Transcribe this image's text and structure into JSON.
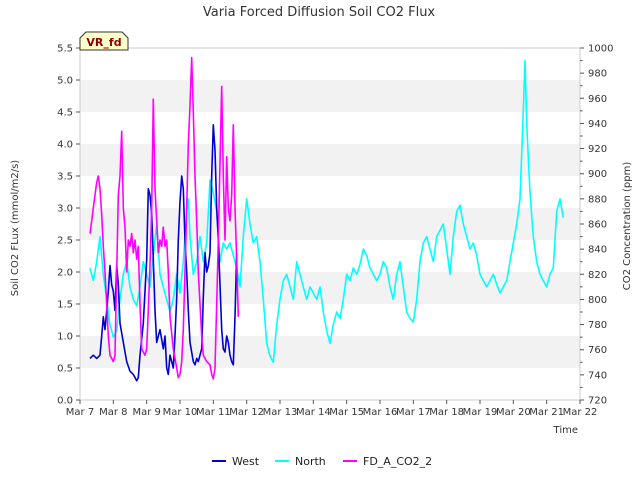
{
  "chart_data": {
    "type": "line",
    "title": "Varia Forced Diffusion Soil CO2 Flux",
    "xlabel": "Time",
    "ylabel": "Soil CO2 FLux (mmol/m2/s)",
    "ylabel_right": "CO2 Concentration (ppm)",
    "badge": "VR_fd",
    "x_ticks": [
      "Mar 7",
      "Mar 8",
      "Mar 9",
      "Mar 10",
      "Mar 11",
      "Mar 12",
      "Mar 13",
      "Mar 14",
      "Mar 15",
      "Mar 16",
      "Mar 17",
      "Mar 18",
      "Mar 19",
      "Mar 20",
      "Mar 21",
      "Mar 22"
    ],
    "xlim": [
      0,
      15
    ],
    "ylim": [
      0.0,
      5.5
    ],
    "y_ticks": [
      "0.0",
      "0.5",
      "1.0",
      "1.5",
      "2.0",
      "2.5",
      "3.0",
      "3.5",
      "4.0",
      "4.5",
      "5.0",
      "5.5"
    ],
    "ylim_right": [
      720,
      1000
    ],
    "y_ticks_right": [
      "720",
      "740",
      "760",
      "780",
      "800",
      "820",
      "840",
      "860",
      "880",
      "900",
      "920",
      "940",
      "960",
      "980",
      "1000"
    ],
    "grid": "horizontal bands",
    "legend_position": "bottom-center",
    "series": [
      {
        "name": "West",
        "axis": "left",
        "color": "#0000cc",
        "points": [
          [
            0.3,
            0.65
          ],
          [
            0.4,
            0.7
          ],
          [
            0.5,
            0.65
          ],
          [
            0.6,
            0.7
          ],
          [
            0.65,
            1.0
          ],
          [
            0.7,
            1.3
          ],
          [
            0.75,
            1.1
          ],
          [
            0.8,
            1.4
          ],
          [
            0.85,
            1.7
          ],
          [
            0.9,
            2.1
          ],
          [
            0.95,
            1.8
          ],
          [
            1.0,
            1.7
          ],
          [
            1.05,
            1.4
          ],
          [
            1.1,
            2.1
          ],
          [
            1.15,
            1.8
          ],
          [
            1.2,
            1.2
          ],
          [
            1.3,
            0.9
          ],
          [
            1.4,
            0.6
          ],
          [
            1.5,
            0.45
          ],
          [
            1.6,
            0.4
          ],
          [
            1.7,
            0.3
          ],
          [
            1.75,
            0.35
          ],
          [
            1.8,
            0.7
          ],
          [
            1.9,
            1.2
          ],
          [
            2.0,
            2.2
          ],
          [
            2.05,
            3.3
          ],
          [
            2.1,
            3.2
          ],
          [
            2.15,
            2.9
          ],
          [
            2.2,
            2.2
          ],
          [
            2.25,
            1.4
          ],
          [
            2.3,
            0.9
          ],
          [
            2.4,
            1.1
          ],
          [
            2.5,
            0.8
          ],
          [
            2.55,
            1.0
          ],
          [
            2.6,
            0.5
          ],
          [
            2.65,
            0.4
          ],
          [
            2.7,
            0.7
          ],
          [
            2.8,
            0.5
          ],
          [
            2.85,
            1.0
          ],
          [
            2.9,
            1.6
          ],
          [
            2.95,
            2.5
          ],
          [
            3.0,
            3.1
          ],
          [
            3.05,
            3.5
          ],
          [
            3.1,
            3.3
          ],
          [
            3.15,
            2.5
          ],
          [
            3.2,
            2.0
          ],
          [
            3.25,
            1.4
          ],
          [
            3.3,
            0.9
          ],
          [
            3.4,
            0.6
          ],
          [
            3.45,
            0.55
          ],
          [
            3.5,
            0.65
          ],
          [
            3.55,
            0.6
          ],
          [
            3.6,
            0.7
          ],
          [
            3.65,
            0.8
          ],
          [
            3.7,
            1.6
          ],
          [
            3.75,
            2.3
          ],
          [
            3.8,
            2.0
          ],
          [
            3.85,
            2.1
          ],
          [
            3.9,
            2.3
          ],
          [
            3.95,
            3.5
          ],
          [
            4.0,
            4.3
          ],
          [
            4.05,
            3.9
          ],
          [
            4.1,
            3.0
          ],
          [
            4.15,
            2.5
          ],
          [
            4.2,
            1.8
          ],
          [
            4.25,
            1.1
          ],
          [
            4.3,
            0.8
          ],
          [
            4.35,
            0.75
          ],
          [
            4.4,
            1.0
          ],
          [
            4.45,
            0.9
          ],
          [
            4.5,
            0.7
          ],
          [
            4.55,
            0.6
          ],
          [
            4.6,
            0.55
          ],
          [
            4.65,
            1.3
          ],
          [
            4.7,
            2.3
          ]
        ]
      },
      {
        "name": "North",
        "axis": "right",
        "color": "#00ffff",
        "points": [
          [
            0.3,
            825
          ],
          [
            0.4,
            815
          ],
          [
            0.5,
            830
          ],
          [
            0.6,
            850
          ],
          [
            0.7,
            820
          ],
          [
            0.8,
            800
          ],
          [
            0.9,
            780
          ],
          [
            1.0,
            770
          ],
          [
            1.1,
            775
          ],
          [
            1.2,
            800
          ],
          [
            1.3,
            820
          ],
          [
            1.4,
            830
          ],
          [
            1.5,
            810
          ],
          [
            1.6,
            800
          ],
          [
            1.7,
            795
          ],
          [
            1.8,
            810
          ],
          [
            1.9,
            830
          ],
          [
            2.0,
            820
          ],
          [
            2.1,
            810
          ],
          [
            2.2,
            835
          ],
          [
            2.3,
            860
          ],
          [
            2.4,
            820
          ],
          [
            2.5,
            810
          ],
          [
            2.6,
            800
          ],
          [
            2.7,
            790
          ],
          [
            2.8,
            800
          ],
          [
            2.9,
            820
          ],
          [
            3.0,
            805
          ],
          [
            3.1,
            830
          ],
          [
            3.2,
            870
          ],
          [
            3.25,
            880
          ],
          [
            3.3,
            850
          ],
          [
            3.4,
            820
          ],
          [
            3.5,
            830
          ],
          [
            3.6,
            850
          ],
          [
            3.7,
            830
          ],
          [
            3.8,
            845
          ],
          [
            3.9,
            895
          ],
          [
            4.0,
            885
          ],
          [
            4.1,
            870
          ],
          [
            4.2,
            830
          ],
          [
            4.3,
            845
          ],
          [
            4.4,
            840
          ],
          [
            4.5,
            845
          ],
          [
            4.6,
            835
          ],
          [
            4.7,
            825
          ],
          [
            4.8,
            810
          ],
          [
            4.9,
            850
          ],
          [
            5.0,
            880
          ],
          [
            5.1,
            860
          ],
          [
            5.2,
            845
          ],
          [
            5.3,
            850
          ],
          [
            5.4,
            830
          ],
          [
            5.5,
            800
          ],
          [
            5.6,
            765
          ],
          [
            5.7,
            755
          ],
          [
            5.8,
            750
          ],
          [
            5.9,
            780
          ],
          [
            6.0,
            800
          ],
          [
            6.1,
            815
          ],
          [
            6.2,
            820
          ],
          [
            6.3,
            810
          ],
          [
            6.4,
            800
          ],
          [
            6.5,
            830
          ],
          [
            6.6,
            820
          ],
          [
            6.7,
            810
          ],
          [
            6.8,
            800
          ],
          [
            6.9,
            810
          ],
          [
            7.0,
            805
          ],
          [
            7.1,
            800
          ],
          [
            7.2,
            810
          ],
          [
            7.3,
            790
          ],
          [
            7.4,
            775
          ],
          [
            7.5,
            765
          ],
          [
            7.6,
            780
          ],
          [
            7.7,
            790
          ],
          [
            7.8,
            785
          ],
          [
            7.9,
            800
          ],
          [
            8.0,
            820
          ],
          [
            8.1,
            815
          ],
          [
            8.2,
            825
          ],
          [
            8.3,
            820
          ],
          [
            8.4,
            828
          ],
          [
            8.5,
            840
          ],
          [
            8.6,
            835
          ],
          [
            8.7,
            825
          ],
          [
            8.8,
            820
          ],
          [
            8.9,
            815
          ],
          [
            9.0,
            820
          ],
          [
            9.1,
            830
          ],
          [
            9.2,
            825
          ],
          [
            9.3,
            810
          ],
          [
            9.4,
            800
          ],
          [
            9.5,
            820
          ],
          [
            9.6,
            830
          ],
          [
            9.7,
            810
          ],
          [
            9.8,
            790
          ],
          [
            9.9,
            785
          ],
          [
            10.0,
            782
          ],
          [
            10.1,
            800
          ],
          [
            10.2,
            830
          ],
          [
            10.3,
            845
          ],
          [
            10.4,
            850
          ],
          [
            10.5,
            840
          ],
          [
            10.6,
            830
          ],
          [
            10.7,
            850
          ],
          [
            10.8,
            855
          ],
          [
            10.9,
            860
          ],
          [
            11.0,
            840
          ],
          [
            11.1,
            820
          ],
          [
            11.2,
            850
          ],
          [
            11.3,
            870
          ],
          [
            11.4,
            875
          ],
          [
            11.5,
            860
          ],
          [
            11.6,
            850
          ],
          [
            11.7,
            840
          ],
          [
            11.8,
            845
          ],
          [
            11.9,
            835
          ],
          [
            12.0,
            820
          ],
          [
            12.1,
            815
          ],
          [
            12.2,
            810
          ],
          [
            12.3,
            815
          ],
          [
            12.4,
            820
          ],
          [
            12.5,
            812
          ],
          [
            12.6,
            805
          ],
          [
            12.7,
            810
          ],
          [
            12.8,
            815
          ],
          [
            12.9,
            830
          ],
          [
            13.0,
            845
          ],
          [
            13.1,
            860
          ],
          [
            13.2,
            880
          ],
          [
            13.3,
            950
          ],
          [
            13.35,
            990
          ],
          [
            13.4,
            940
          ],
          [
            13.5,
            885
          ],
          [
            13.6,
            850
          ],
          [
            13.7,
            830
          ],
          [
            13.8,
            820
          ],
          [
            13.9,
            815
          ],
          [
            14.0,
            810
          ],
          [
            14.1,
            820
          ],
          [
            14.2,
            825
          ],
          [
            14.3,
            870
          ],
          [
            14.4,
            880
          ],
          [
            14.5,
            865
          ]
        ]
      },
      {
        "name": "FD_A_CO2_2",
        "axis": "left",
        "color": "#ff00ff",
        "points": [
          [
            0.3,
            2.6
          ],
          [
            0.35,
            2.8
          ],
          [
            0.4,
            3.0
          ],
          [
            0.45,
            3.2
          ],
          [
            0.5,
            3.4
          ],
          [
            0.55,
            3.5
          ],
          [
            0.6,
            3.3
          ],
          [
            0.65,
            2.9
          ],
          [
            0.7,
            2.4
          ],
          [
            0.75,
            2.0
          ],
          [
            0.8,
            1.5
          ],
          [
            0.85,
            1.0
          ],
          [
            0.9,
            0.7
          ],
          [
            0.95,
            0.65
          ],
          [
            1.0,
            0.6
          ],
          [
            1.05,
            0.7
          ],
          [
            1.1,
            2.0
          ],
          [
            1.15,
            3.2
          ],
          [
            1.2,
            3.5
          ],
          [
            1.25,
            4.2
          ],
          [
            1.3,
            3.0
          ],
          [
            1.35,
            2.7
          ],
          [
            1.4,
            2.0
          ],
          [
            1.45,
            2.5
          ],
          [
            1.5,
            2.4
          ],
          [
            1.55,
            2.6
          ],
          [
            1.6,
            2.3
          ],
          [
            1.65,
            2.5
          ],
          [
            1.7,
            2.2
          ],
          [
            1.75,
            2.4
          ],
          [
            1.8,
            1.5
          ],
          [
            1.85,
            0.8
          ],
          [
            1.9,
            0.75
          ],
          [
            1.95,
            0.7
          ],
          [
            2.0,
            0.8
          ],
          [
            2.05,
            1.4
          ],
          [
            2.1,
            2.1
          ],
          [
            2.15,
            3.0
          ],
          [
            2.2,
            4.7
          ],
          [
            2.25,
            3.3
          ],
          [
            2.3,
            2.8
          ],
          [
            2.35,
            2.3
          ],
          [
            2.4,
            2.5
          ],
          [
            2.45,
            2.4
          ],
          [
            2.5,
            2.7
          ],
          [
            2.55,
            2.4
          ],
          [
            2.6,
            2.5
          ],
          [
            2.65,
            2.0
          ],
          [
            2.7,
            1.3
          ],
          [
            2.8,
            0.8
          ],
          [
            2.9,
            0.5
          ],
          [
            2.95,
            0.35
          ],
          [
            3.0,
            0.4
          ],
          [
            3.05,
            0.6
          ],
          [
            3.1,
            1.1
          ],
          [
            3.15,
            2.0
          ],
          [
            3.2,
            3.0
          ],
          [
            3.25,
            4.0
          ],
          [
            3.3,
            4.6
          ],
          [
            3.35,
            5.35
          ],
          [
            3.4,
            4.5
          ],
          [
            3.45,
            3.5
          ],
          [
            3.5,
            2.8
          ],
          [
            3.55,
            2.0
          ],
          [
            3.6,
            1.5
          ],
          [
            3.65,
            1.0
          ],
          [
            3.7,
            0.7
          ],
          [
            3.8,
            0.6
          ],
          [
            3.9,
            0.55
          ],
          [
            3.95,
            0.4
          ],
          [
            4.0,
            0.33
          ],
          [
            4.05,
            0.5
          ],
          [
            4.1,
            1.5
          ],
          [
            4.15,
            2.5
          ],
          [
            4.2,
            3.7
          ],
          [
            4.25,
            4.9
          ],
          [
            4.3,
            3.5
          ],
          [
            4.35,
            2.5
          ],
          [
            4.4,
            3.8
          ],
          [
            4.45,
            3.0
          ],
          [
            4.5,
            2.8
          ],
          [
            4.55,
            3.2
          ],
          [
            4.6,
            4.3
          ],
          [
            4.65,
            3.0
          ],
          [
            4.7,
            2.2
          ],
          [
            4.75,
            1.3
          ]
        ]
      }
    ]
  }
}
